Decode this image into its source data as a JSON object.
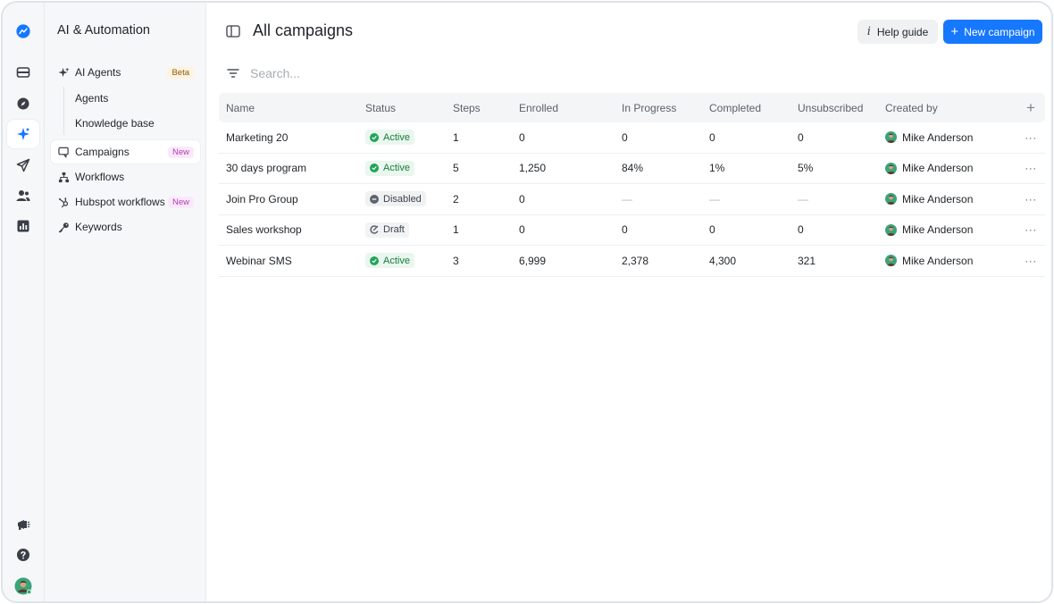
{
  "rail": {
    "items": [
      {
        "name": "logo-icon"
      },
      {
        "name": "inbox-icon"
      },
      {
        "name": "compass-icon"
      },
      {
        "name": "ai-automation-icon"
      },
      {
        "name": "send-icon"
      },
      {
        "name": "contacts-icon"
      },
      {
        "name": "analytics-icon"
      }
    ],
    "bottom": [
      {
        "name": "megaphone-icon"
      },
      {
        "name": "help-icon"
      },
      {
        "name": "user-avatar"
      }
    ]
  },
  "sidebar": {
    "title": "AI & Automation",
    "ai_agents": {
      "label": "AI Agents",
      "badge": "Beta"
    },
    "sub_items": [
      "Agents",
      "Knowledge base"
    ],
    "items": [
      {
        "label": "Campaigns",
        "badge": "New"
      },
      {
        "label": "Workflows"
      },
      {
        "label": "Hubspot workflows",
        "badge": "New"
      },
      {
        "label": "Keywords"
      }
    ]
  },
  "header": {
    "title": "All campaigns",
    "help_label": "Help guide",
    "help_icon": "i",
    "new_label": "New campaign",
    "new_icon": "+"
  },
  "search": {
    "placeholder": "Search..."
  },
  "table": {
    "columns": [
      "Name",
      "Status",
      "Steps",
      "Enrolled",
      "In Progress",
      "Completed",
      "Unsubscribed",
      "Created by"
    ],
    "add_column": "+",
    "more": "···",
    "rows": [
      {
        "name": "Marketing 20",
        "status": "Active",
        "steps": "1",
        "enrolled": "0",
        "in_progress": "0",
        "completed": "0",
        "unsubscribed": "0",
        "created_by": "Mike Anderson"
      },
      {
        "name": "30 days program",
        "status": "Active",
        "steps": "5",
        "enrolled": "1,250",
        "in_progress": "84%",
        "completed": "1%",
        "unsubscribed": "5%",
        "created_by": "Mike Anderson"
      },
      {
        "name": "Join Pro Group",
        "status": "Disabled",
        "steps": "2",
        "enrolled": "0",
        "in_progress": "—",
        "completed": "—",
        "unsubscribed": "—",
        "created_by": "Mike Anderson"
      },
      {
        "name": "Sales workshop",
        "status": "Draft",
        "steps": "1",
        "enrolled": "0",
        "in_progress": "0",
        "completed": "0",
        "unsubscribed": "0",
        "created_by": "Mike Anderson"
      },
      {
        "name": "Webinar SMS",
        "status": "Active",
        "steps": "3",
        "enrolled": "6,999",
        "in_progress": "2,378",
        "completed": "4,300",
        "unsubscribed": "321",
        "created_by": "Mike Anderson"
      }
    ]
  },
  "colors": {
    "accent": "#1677ff",
    "active": "#22a35a",
    "beta_badge": "#fff3df",
    "new_badge": "#fbe9fb"
  }
}
